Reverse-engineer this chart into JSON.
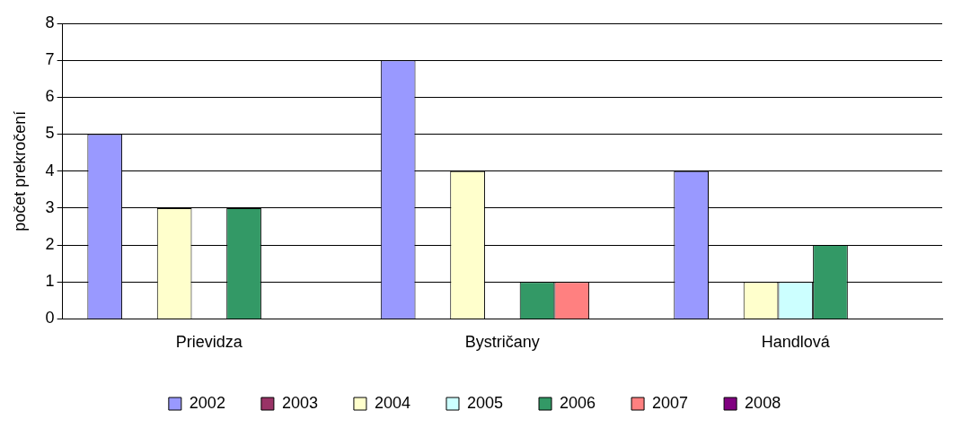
{
  "chart_data": {
    "type": "bar",
    "ylabel": "počet prekročení",
    "categories": [
      "Prievidza",
      "Bystričany",
      "Handlová"
    ],
    "series": [
      {
        "name": "2002",
        "color": "#9999ff",
        "values": [
          5,
          7,
          4
        ]
      },
      {
        "name": "2003",
        "color": "#993366",
        "values": [
          0,
          0,
          0
        ]
      },
      {
        "name": "2004",
        "color": "#ffffcc",
        "values": [
          3,
          4,
          1
        ]
      },
      {
        "name": "2005",
        "color": "#ccffff",
        "values": [
          0,
          0,
          1
        ]
      },
      {
        "name": "2006",
        "color": "#339966",
        "values": [
          3,
          1,
          2
        ]
      },
      {
        "name": "2007",
        "color": "#ff8080",
        "values": [
          0,
          1,
          0
        ]
      },
      {
        "name": "2008",
        "color": "#800080",
        "values": [
          0,
          0,
          0
        ]
      }
    ],
    "ylim": [
      0,
      8
    ],
    "yticks": [
      0,
      1,
      2,
      3,
      4,
      5,
      6,
      7,
      8
    ],
    "grid": "y",
    "legend": "bottom"
  }
}
